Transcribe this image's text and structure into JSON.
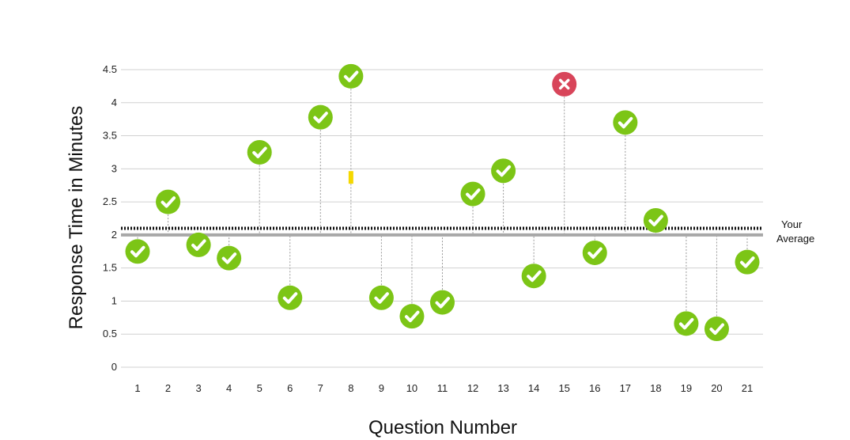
{
  "chart_data": {
    "type": "scatter",
    "title": "",
    "xlabel": "Question Number",
    "ylabel": "Response Time in Minutes",
    "x": [
      1,
      2,
      3,
      4,
      5,
      6,
      7,
      8,
      9,
      10,
      11,
      12,
      13,
      14,
      15,
      16,
      17,
      18,
      19,
      20,
      21
    ],
    "y": [
      1.75,
      2.5,
      1.85,
      1.65,
      3.25,
      1.05,
      3.78,
      4.4,
      1.05,
      0.77,
      0.98,
      2.62,
      2.97,
      1.38,
      4.28,
      1.73,
      3.7,
      2.22,
      0.66,
      0.58,
      1.59
    ],
    "status": [
      "correct",
      "correct",
      "correct",
      "correct",
      "correct",
      "correct",
      "correct",
      "correct",
      "correct",
      "correct",
      "correct",
      "correct",
      "correct",
      "correct",
      "incorrect",
      "correct",
      "correct",
      "correct",
      "correct",
      "correct",
      "correct"
    ],
    "ylim": [
      0,
      4.5
    ],
    "yticks": [
      "0",
      "0.5",
      "1",
      "1.5",
      "2",
      "2.5",
      "3",
      "3.5",
      "4",
      "4.5"
    ],
    "xticks": [
      "1",
      "2",
      "3",
      "4",
      "5",
      "6",
      "7",
      "8",
      "9",
      "10",
      "11",
      "12",
      "13",
      "14",
      "15",
      "16",
      "17",
      "18",
      "19",
      "20",
      "21"
    ],
    "grid": true,
    "reference_line": 2,
    "average": {
      "value": 2.1,
      "label_line1": "Your",
      "label_line2": "Average"
    },
    "annotation": {
      "x": 8,
      "y": 2.87,
      "color": "#f5d800"
    },
    "colors": {
      "correct": "#7cc516",
      "incorrect": "#d8455a",
      "grid": "#d0d0d0",
      "reference": "#a8a8a8",
      "average": "#111111",
      "dropline": "#9a9a9a"
    }
  }
}
